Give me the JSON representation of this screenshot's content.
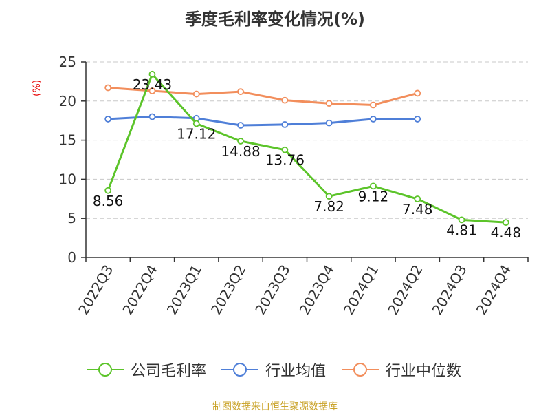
{
  "chart_data": {
    "type": "line",
    "title": "季度毛利率变化情况(%)",
    "ylabel": "(%)",
    "xlabel": "",
    "categories": [
      "2022Q3",
      "2022Q4",
      "2023Q1",
      "2023Q2",
      "2023Q3",
      "2023Q4",
      "2024Q1",
      "2024Q2",
      "2024Q3",
      "2024Q4"
    ],
    "ylim": [
      0,
      25
    ],
    "yticks": [
      0,
      5,
      10,
      15,
      20,
      25
    ],
    "grid": "horizontal dashed",
    "legend_position": "bottom",
    "series": [
      {
        "name": "公司毛利率",
        "color": "#5cc42a",
        "values": [
          8.56,
          23.43,
          17.12,
          14.88,
          13.76,
          7.82,
          9.12,
          7.48,
          4.81,
          4.48
        ],
        "data_labels": [
          "8.56",
          "23.43",
          "17.12",
          "14.88",
          "13.76",
          "7.82",
          "9.12",
          "7.48",
          "4.81",
          "4.48"
        ]
      },
      {
        "name": "行业均值",
        "color": "#4f7fd8",
        "values": [
          17.7,
          18.0,
          17.8,
          16.9,
          17.0,
          17.2,
          17.7,
          17.7,
          null,
          null
        ]
      },
      {
        "name": "行业中位数",
        "color": "#f28e5c",
        "values": [
          21.7,
          21.3,
          20.9,
          21.2,
          20.1,
          19.7,
          19.5,
          21.0,
          null,
          null
        ]
      }
    ]
  },
  "source": "制图数据来自恒生聚源数据库"
}
